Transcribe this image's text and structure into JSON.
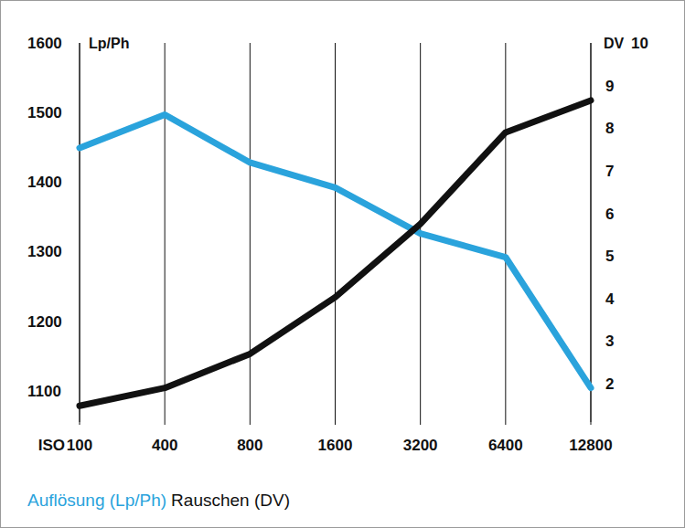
{
  "chart_data": {
    "type": "line",
    "x_label": "ISO",
    "y_label": "Lp/Ph",
    "y2_label": "DV",
    "categories": [
      "100",
      "400",
      "800",
      "1600",
      "3200",
      "6400",
      "12800"
    ],
    "series": [
      {
        "name": "Auflösung (Lp/Ph)",
        "color": "#2aa3dc",
        "values": [
          1449,
          1497,
          1428,
          1392,
          1326,
          1292,
          1104
        ]
      },
      {
        "name": "Rauschen (DV)",
        "color": "#111111",
        "axis": "y2",
        "values": [
          1.48,
          1.9,
          2.7,
          4.03,
          5.75,
          7.9,
          8.65
        ]
      }
    ],
    "ylim": [
      1055,
      1600
    ],
    "yticks": [
      1100,
      1200,
      1300,
      1400,
      1500,
      1600
    ],
    "y2lim": [
      1.1,
      10
    ],
    "y2ticks": [
      2,
      3,
      4,
      5,
      6,
      7,
      8,
      9,
      10
    ],
    "grid": true,
    "legend": "bottom-left"
  }
}
